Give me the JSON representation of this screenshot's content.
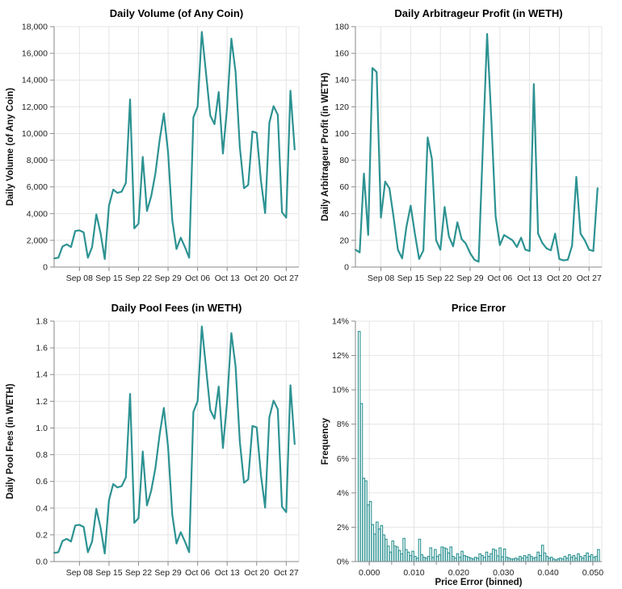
{
  "theme": {
    "series_color": "#2d9292",
    "grid_color": "#e4e4e4",
    "domain_color": "#8a8a8a",
    "tick_label_color": "#222222",
    "title_color": "#000000",
    "background": "#ffffff"
  },
  "chart_data": [
    {
      "type": "line",
      "title": "Daily Volume (of Any Coin)",
      "ylabel": "Daily Volume (of Any Coin)",
      "x_start_date": "Sep 02",
      "x_end_date": "Oct 29",
      "x_domain_days": 58,
      "x_ticks": [
        {
          "day": 6,
          "label": "Sep 08"
        },
        {
          "day": 13,
          "label": "Sep 15"
        },
        {
          "day": 20,
          "label": "Sep 22"
        },
        {
          "day": 27,
          "label": "Sep 29"
        },
        {
          "day": 34,
          "label": "Oct 06"
        },
        {
          "day": 41,
          "label": "Oct 13"
        },
        {
          "day": 48,
          "label": "Oct 20"
        },
        {
          "day": 55,
          "label": "Oct 27"
        }
      ],
      "ylim": [
        0,
        18000
      ],
      "y_ticks": [
        {
          "v": 0,
          "label": "0"
        },
        {
          "v": 2000,
          "label": "2,000"
        },
        {
          "v": 4000,
          "label": "4,000"
        },
        {
          "v": 6000,
          "label": "6,000"
        },
        {
          "v": 8000,
          "label": "8,000"
        },
        {
          "v": 10000,
          "label": "10,000"
        },
        {
          "v": 12000,
          "label": "12,000"
        },
        {
          "v": 14000,
          "label": "14,000"
        },
        {
          "v": 16000,
          "label": "16,000"
        },
        {
          "v": 18000,
          "label": "18,000"
        }
      ],
      "values": [
        650,
        700,
        1550,
        1700,
        1500,
        2700,
        2750,
        2600,
        700,
        1500,
        3950,
        2550,
        600,
        4600,
        5800,
        5550,
        5650,
        6300,
        12550,
        2900,
        3250,
        8250,
        4200,
        5300,
        7000,
        9500,
        11500,
        8600,
        3500,
        1350,
        2200,
        1500,
        700,
        11200,
        12000,
        17600,
        14500,
        11350,
        10700,
        13100,
        8500,
        12000,
        17100,
        14600,
        9000,
        5900,
        6150,
        10150,
        10050,
        6500,
        4040,
        10800,
        12050,
        11400,
        4100,
        3700,
        13200,
        8800
      ]
    },
    {
      "type": "line",
      "title": "Daily Arbitrageur Profit (in WETH)",
      "ylabel": "Daily Arbitrageur Profit (in WETH)",
      "x_start_date": "Sep 02",
      "x_end_date": "Oct 29",
      "x_domain_days": 58,
      "x_ticks": [
        {
          "day": 6,
          "label": "Sep 08"
        },
        {
          "day": 13,
          "label": "Sep 15"
        },
        {
          "day": 20,
          "label": "Sep 22"
        },
        {
          "day": 27,
          "label": "Sep 29"
        },
        {
          "day": 34,
          "label": "Oct 06"
        },
        {
          "day": 41,
          "label": "Oct 13"
        },
        {
          "day": 48,
          "label": "Oct 20"
        },
        {
          "day": 55,
          "label": "Oct 27"
        }
      ],
      "ylim": [
        0,
        180
      ],
      "y_ticks": [
        {
          "v": 0,
          "label": "0"
        },
        {
          "v": 20,
          "label": "20"
        },
        {
          "v": 40,
          "label": "40"
        },
        {
          "v": 60,
          "label": "60"
        },
        {
          "v": 80,
          "label": "80"
        },
        {
          "v": 100,
          "label": "100"
        },
        {
          "v": 120,
          "label": "120"
        },
        {
          "v": 140,
          "label": "140"
        },
        {
          "v": 160,
          "label": "160"
        },
        {
          "v": 180,
          "label": "180"
        }
      ],
      "values": [
        13,
        11,
        70,
        24,
        149,
        146,
        37,
        64,
        59,
        37,
        13,
        6.5,
        30,
        46,
        25,
        6,
        12.5,
        97,
        81,
        20,
        13,
        45,
        23,
        15.5,
        33.5,
        21,
        17.5,
        10.5,
        5.5,
        4,
        90,
        174.5,
        110,
        38,
        16.5,
        24,
        22,
        20,
        15,
        22,
        13,
        12,
        137,
        25,
        18,
        14,
        12.5,
        25,
        6,
        5,
        5.5,
        16,
        67.5,
        25,
        20,
        13,
        12,
        59
      ]
    },
    {
      "type": "line",
      "title": "Daily Pool Fees (in WETH)",
      "ylabel": "Daily Pool Fees (in WETH)",
      "x_start_date": "Sep 02",
      "x_end_date": "Oct 29",
      "x_domain_days": 58,
      "x_ticks": [
        {
          "day": 6,
          "label": "Sep 08"
        },
        {
          "day": 13,
          "label": "Sep 15"
        },
        {
          "day": 20,
          "label": "Sep 22"
        },
        {
          "day": 27,
          "label": "Sep 29"
        },
        {
          "day": 34,
          "label": "Oct 06"
        },
        {
          "day": 41,
          "label": "Oct 13"
        },
        {
          "day": 48,
          "label": "Oct 20"
        },
        {
          "day": 55,
          "label": "Oct 27"
        }
      ],
      "ylim": [
        0,
        1.8
      ],
      "y_ticks": [
        {
          "v": 0,
          "label": "0.0"
        },
        {
          "v": 0.2,
          "label": "0.2"
        },
        {
          "v": 0.4,
          "label": "0.4"
        },
        {
          "v": 0.6,
          "label": "0.6"
        },
        {
          "v": 0.8,
          "label": "0.8"
        },
        {
          "v": 1.0,
          "label": "1.0"
        },
        {
          "v": 1.2,
          "label": "1.2"
        },
        {
          "v": 1.4,
          "label": "1.4"
        },
        {
          "v": 1.6,
          "label": "1.6"
        },
        {
          "v": 1.8,
          "label": "1.8"
        }
      ],
      "values": [
        0.065,
        0.07,
        0.155,
        0.17,
        0.15,
        0.27,
        0.275,
        0.26,
        0.07,
        0.15,
        0.395,
        0.255,
        0.06,
        0.46,
        0.58,
        0.555,
        0.565,
        0.63,
        1.255,
        0.29,
        0.325,
        0.825,
        0.42,
        0.53,
        0.7,
        0.95,
        1.15,
        0.86,
        0.35,
        0.135,
        0.22,
        0.15,
        0.07,
        1.12,
        1.2,
        1.76,
        1.45,
        1.135,
        1.07,
        1.31,
        0.85,
        1.2,
        1.71,
        1.46,
        0.9,
        0.59,
        0.615,
        1.015,
        1.005,
        0.65,
        0.404,
        1.08,
        1.205,
        1.14,
        0.41,
        0.37,
        1.32,
        0.88
      ]
    },
    {
      "type": "histogram",
      "title": "Price Error",
      "ylabel": "Frequency",
      "xlabel": "Price Error (binned)",
      "ylim": [
        0,
        14
      ],
      "y_ticks": [
        {
          "v": 0,
          "label": "0%"
        },
        {
          "v": 2,
          "label": "2%"
        },
        {
          "v": 4,
          "label": "4%"
        },
        {
          "v": 6,
          "label": "6%"
        },
        {
          "v": 8,
          "label": "8%"
        },
        {
          "v": 10,
          "label": "10%"
        },
        {
          "v": 12,
          "label": "12%"
        },
        {
          "v": 14,
          "label": "14%"
        }
      ],
      "x_domain": [
        -0.0031,
        0.052
      ],
      "x_ticks": [
        {
          "v": 0.0,
          "label": "0.000"
        },
        {
          "v": 0.01,
          "label": "0.010"
        },
        {
          "v": 0.02,
          "label": "0.020"
        },
        {
          "v": 0.03,
          "label": "0.030"
        },
        {
          "v": 0.04,
          "label": "0.040"
        },
        {
          "v": 0.05,
          "label": "0.050"
        }
      ],
      "x_minor_tick_step": 0.005,
      "bin_start": -0.0025,
      "bin_width": 0.0005,
      "frequencies": [
        13.4,
        9.2,
        4.85,
        4.7,
        3.3,
        3.5,
        2.15,
        1.6,
        2.3,
        1.9,
        2.1,
        1.55,
        1.3,
        0.9,
        0.55,
        1.2,
        0.9,
        0.85,
        0.65,
        0.45,
        1.35,
        0.7,
        0.55,
        0.35,
        0.6,
        0.3,
        0.2,
        1.3,
        0.4,
        0.25,
        0.2,
        0.3,
        0.8,
        0.25,
        0.7,
        0.3,
        0.4,
        0.85,
        0.8,
        0.75,
        0.5,
        0.85,
        0.3,
        0.2,
        0.45,
        0.25,
        0.6,
        0.35,
        0.3,
        0.25,
        0.2,
        0.15,
        0.25,
        0.2,
        0.45,
        0.35,
        0.25,
        0.55,
        0.3,
        0.45,
        0.73,
        0.66,
        0.33,
        0.8,
        0.28,
        0.73,
        0.25,
        0.2,
        0.15,
        0.15,
        0.2,
        0.15,
        0.3,
        0.2,
        0.35,
        0.25,
        0.4,
        0.3,
        0.2,
        0.25,
        0.55,
        0.35,
        0.95,
        0.5,
        0.3,
        0.2,
        0.25,
        0.15,
        0.1,
        0.15,
        0.2,
        0.15,
        0.3,
        0.2,
        0.4,
        0.25,
        0.35,
        0.2,
        0.45,
        0.3,
        0.2,
        0.35,
        0.5,
        0.3,
        0.4,
        0.25,
        0.3,
        0.7
      ]
    }
  ]
}
